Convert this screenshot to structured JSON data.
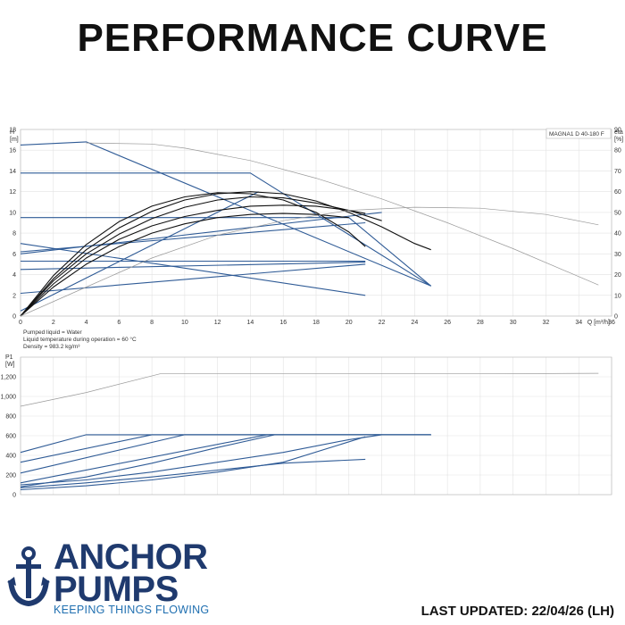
{
  "page": {
    "title": "PERFORMANCE CURVE",
    "updated": "LAST UPDATED: 22/04/26 (LH)"
  },
  "brand": {
    "line1": "ANCHOR",
    "line2": "PUMPS",
    "tagline": "KEEPING THINGS FLOWING",
    "color": "#1f3a6e",
    "tagline_color": "#1f6fb0",
    "icon": "anchor-icon"
  },
  "chart_data": [
    {
      "type": "line",
      "legend_box": "MAGNA1 D 40-180 F",
      "ylabel_left": "H\n[m]",
      "ylabel_right": "eta\n[%]",
      "xlabel": "Q [m³/h]",
      "xlim": [
        0,
        36
      ],
      "ylim": [
        0,
        18
      ],
      "ylim_right": [
        0,
        90
      ],
      "xticks": [
        0,
        2,
        4,
        6,
        8,
        10,
        12,
        14,
        16,
        18,
        20,
        22,
        24,
        26,
        28,
        30,
        32,
        34,
        36
      ],
      "yticks": [
        0,
        2,
        4,
        6,
        8,
        10,
        12,
        14,
        16,
        18
      ],
      "yticks_right": [
        0,
        10,
        20,
        30,
        40,
        50,
        60,
        70,
        80,
        90
      ],
      "grid": true,
      "notes": [
        "Pumped liquid = Water",
        "Liquid temperature during operation = 60 °C",
        "Density = 983.2 kg/m³"
      ],
      "series": [
        {
          "role": "max-curve",
          "color": "#2f5b96",
          "x": [
            0,
            4,
            25
          ],
          "y": [
            16.5,
            16.8,
            2.9
          ]
        },
        {
          "role": "const-pressure",
          "color": "#2f5b96",
          "x": [
            0,
            14,
            25
          ],
          "y": [
            13.8,
            13.8,
            2.9
          ]
        },
        {
          "role": "const-pressure",
          "color": "#2f5b96",
          "x": [
            0,
            20,
            25
          ],
          "y": [
            9.5,
            9.5,
            2.9
          ]
        },
        {
          "role": "const-pressure",
          "color": "#2f5b96",
          "x": [
            0,
            21
          ],
          "y": [
            7.0,
            2.0
          ]
        },
        {
          "role": "const-pressure",
          "color": "#2f5b96",
          "x": [
            0,
            21
          ],
          "y": [
            5.3,
            5.3
          ]
        },
        {
          "role": "prop-pressure",
          "color": "#2f5b96",
          "x": [
            0,
            21
          ],
          "y": [
            2.2,
            5.0
          ]
        },
        {
          "role": "prop-pressure",
          "color": "#2f5b96",
          "x": [
            0,
            21
          ],
          "y": [
            4.5,
            5.2
          ]
        },
        {
          "role": "prop-pressure",
          "color": "#2f5b96",
          "x": [
            0,
            21
          ],
          "y": [
            6.2,
            9.0
          ]
        },
        {
          "role": "prop-pressure",
          "color": "#2f5b96",
          "x": [
            0,
            22
          ],
          "y": [
            6.0,
            10.0
          ]
        },
        {
          "role": "prop-pressure",
          "color": "#2f5b96",
          "x": [
            0,
            14.5
          ],
          "y": [
            0.5,
            12.0
          ]
        },
        {
          "role": "system",
          "color": "#111111",
          "x": [
            0,
            2,
            4,
            6,
            8,
            10,
            12,
            14,
            16,
            18,
            20,
            22,
            24,
            25
          ],
          "y": [
            0,
            3.6,
            6.4,
            8.5,
            10.1,
            11.2,
            11.8,
            12.0,
            11.8,
            11.1,
            10.0,
            8.6,
            7.0,
            6.4
          ]
        },
        {
          "role": "system",
          "color": "#111111",
          "x": [
            0,
            2,
            4,
            6,
            8,
            10,
            12,
            14,
            16,
            18,
            20,
            21
          ],
          "y": [
            0,
            3.9,
            6.9,
            9.1,
            10.6,
            11.5,
            11.9,
            11.8,
            11.2,
            10.0,
            8.1,
            6.7
          ]
        },
        {
          "role": "system",
          "color": "#111111",
          "x": [
            0,
            2,
            4,
            6,
            8,
            10,
            12,
            14,
            16,
            18,
            20,
            22
          ],
          "y": [
            0,
            3.4,
            6.0,
            7.9,
            9.4,
            10.5,
            11.2,
            11.5,
            11.4,
            10.9,
            10.2,
            9.2
          ]
        },
        {
          "role": "system",
          "color": "#111111",
          "x": [
            0,
            2,
            4,
            6,
            8,
            10,
            12,
            14,
            16,
            18,
            20,
            21
          ],
          "y": [
            0,
            3.1,
            5.6,
            7.4,
            8.7,
            9.6,
            10.2,
            10.6,
            10.7,
            10.6,
            10.2,
            9.9
          ]
        },
        {
          "role": "system",
          "color": "#111111",
          "x": [
            0,
            2,
            4,
            6,
            8,
            10,
            12,
            14,
            16,
            18,
            20
          ],
          "y": [
            0,
            2.8,
            5.0,
            6.7,
            8.0,
            8.9,
            9.5,
            9.8,
            9.9,
            9.8,
            9.5
          ]
        },
        {
          "role": "efficiency",
          "color": "#9a9a9a",
          "axis": "right",
          "x": [
            0,
            4,
            8,
            12,
            16,
            20,
            24,
            28,
            32,
            35.2
          ],
          "y": [
            0,
            14,
            28,
            39,
            46,
            51,
            52.5,
            52,
            49,
            44
          ]
        },
        {
          "role": "max-curve-ext",
          "color": "#9a9a9a",
          "x": [
            4,
            8,
            10,
            14,
            18,
            22,
            26,
            30,
            35.2
          ],
          "y": [
            16.7,
            16.6,
            16.2,
            15.0,
            13.3,
            11.3,
            9.0,
            6.5,
            3.0
          ]
        }
      ]
    },
    {
      "type": "line",
      "ylabel": "P1\n[W]",
      "xlim": [
        0,
        36
      ],
      "ylim": [
        0,
        1400
      ],
      "yticks": [
        0,
        200,
        400,
        600,
        800,
        1000,
        1200
      ],
      "ytick_labels": [
        "0",
        "200",
        "400",
        "600",
        "800",
        "1,000",
        "1,200"
      ],
      "grid": true,
      "series": [
        {
          "role": "power",
          "color": "#2f5b96",
          "x": [
            0,
            4,
            25
          ],
          "y": [
            430,
            610,
            610
          ]
        },
        {
          "role": "power",
          "color": "#2f5b96",
          "x": [
            0,
            8,
            25
          ],
          "y": [
            330,
            610,
            610
          ]
        },
        {
          "role": "power",
          "color": "#2f5b96",
          "x": [
            0,
            10,
            25
          ],
          "y": [
            220,
            610,
            610
          ]
        },
        {
          "role": "power",
          "color": "#2f5b96",
          "x": [
            0,
            15,
            25
          ],
          "y": [
            120,
            610,
            610
          ]
        },
        {
          "role": "power",
          "color": "#2f5b96",
          "x": [
            0,
            4,
            8,
            12,
            15.5
          ],
          "y": [
            80,
            180,
            320,
            480,
            610
          ]
        },
        {
          "role": "power",
          "color": "#2f5b96",
          "x": [
            0,
            4,
            8,
            12,
            16,
            20,
            22
          ],
          "y": [
            100,
            150,
            230,
            330,
            430,
            560,
            610
          ]
        },
        {
          "role": "power",
          "color": "#2f5b96",
          "x": [
            0,
            4,
            8,
            12,
            16,
            21
          ],
          "y": [
            70,
            120,
            180,
            250,
            320,
            360
          ]
        },
        {
          "role": "power",
          "color": "#2f5b96",
          "x": [
            0,
            4,
            8,
            12,
            16,
            21
          ],
          "y": [
            50,
            90,
            150,
            230,
            330,
            590
          ]
        },
        {
          "role": "power-max-ext",
          "color": "#9a9a9a",
          "x": [
            0,
            4,
            8.5,
            12,
            20,
            28,
            35.2
          ],
          "y": [
            900,
            1040,
            1230,
            1230,
            1230,
            1230,
            1235
          ]
        }
      ]
    }
  ]
}
